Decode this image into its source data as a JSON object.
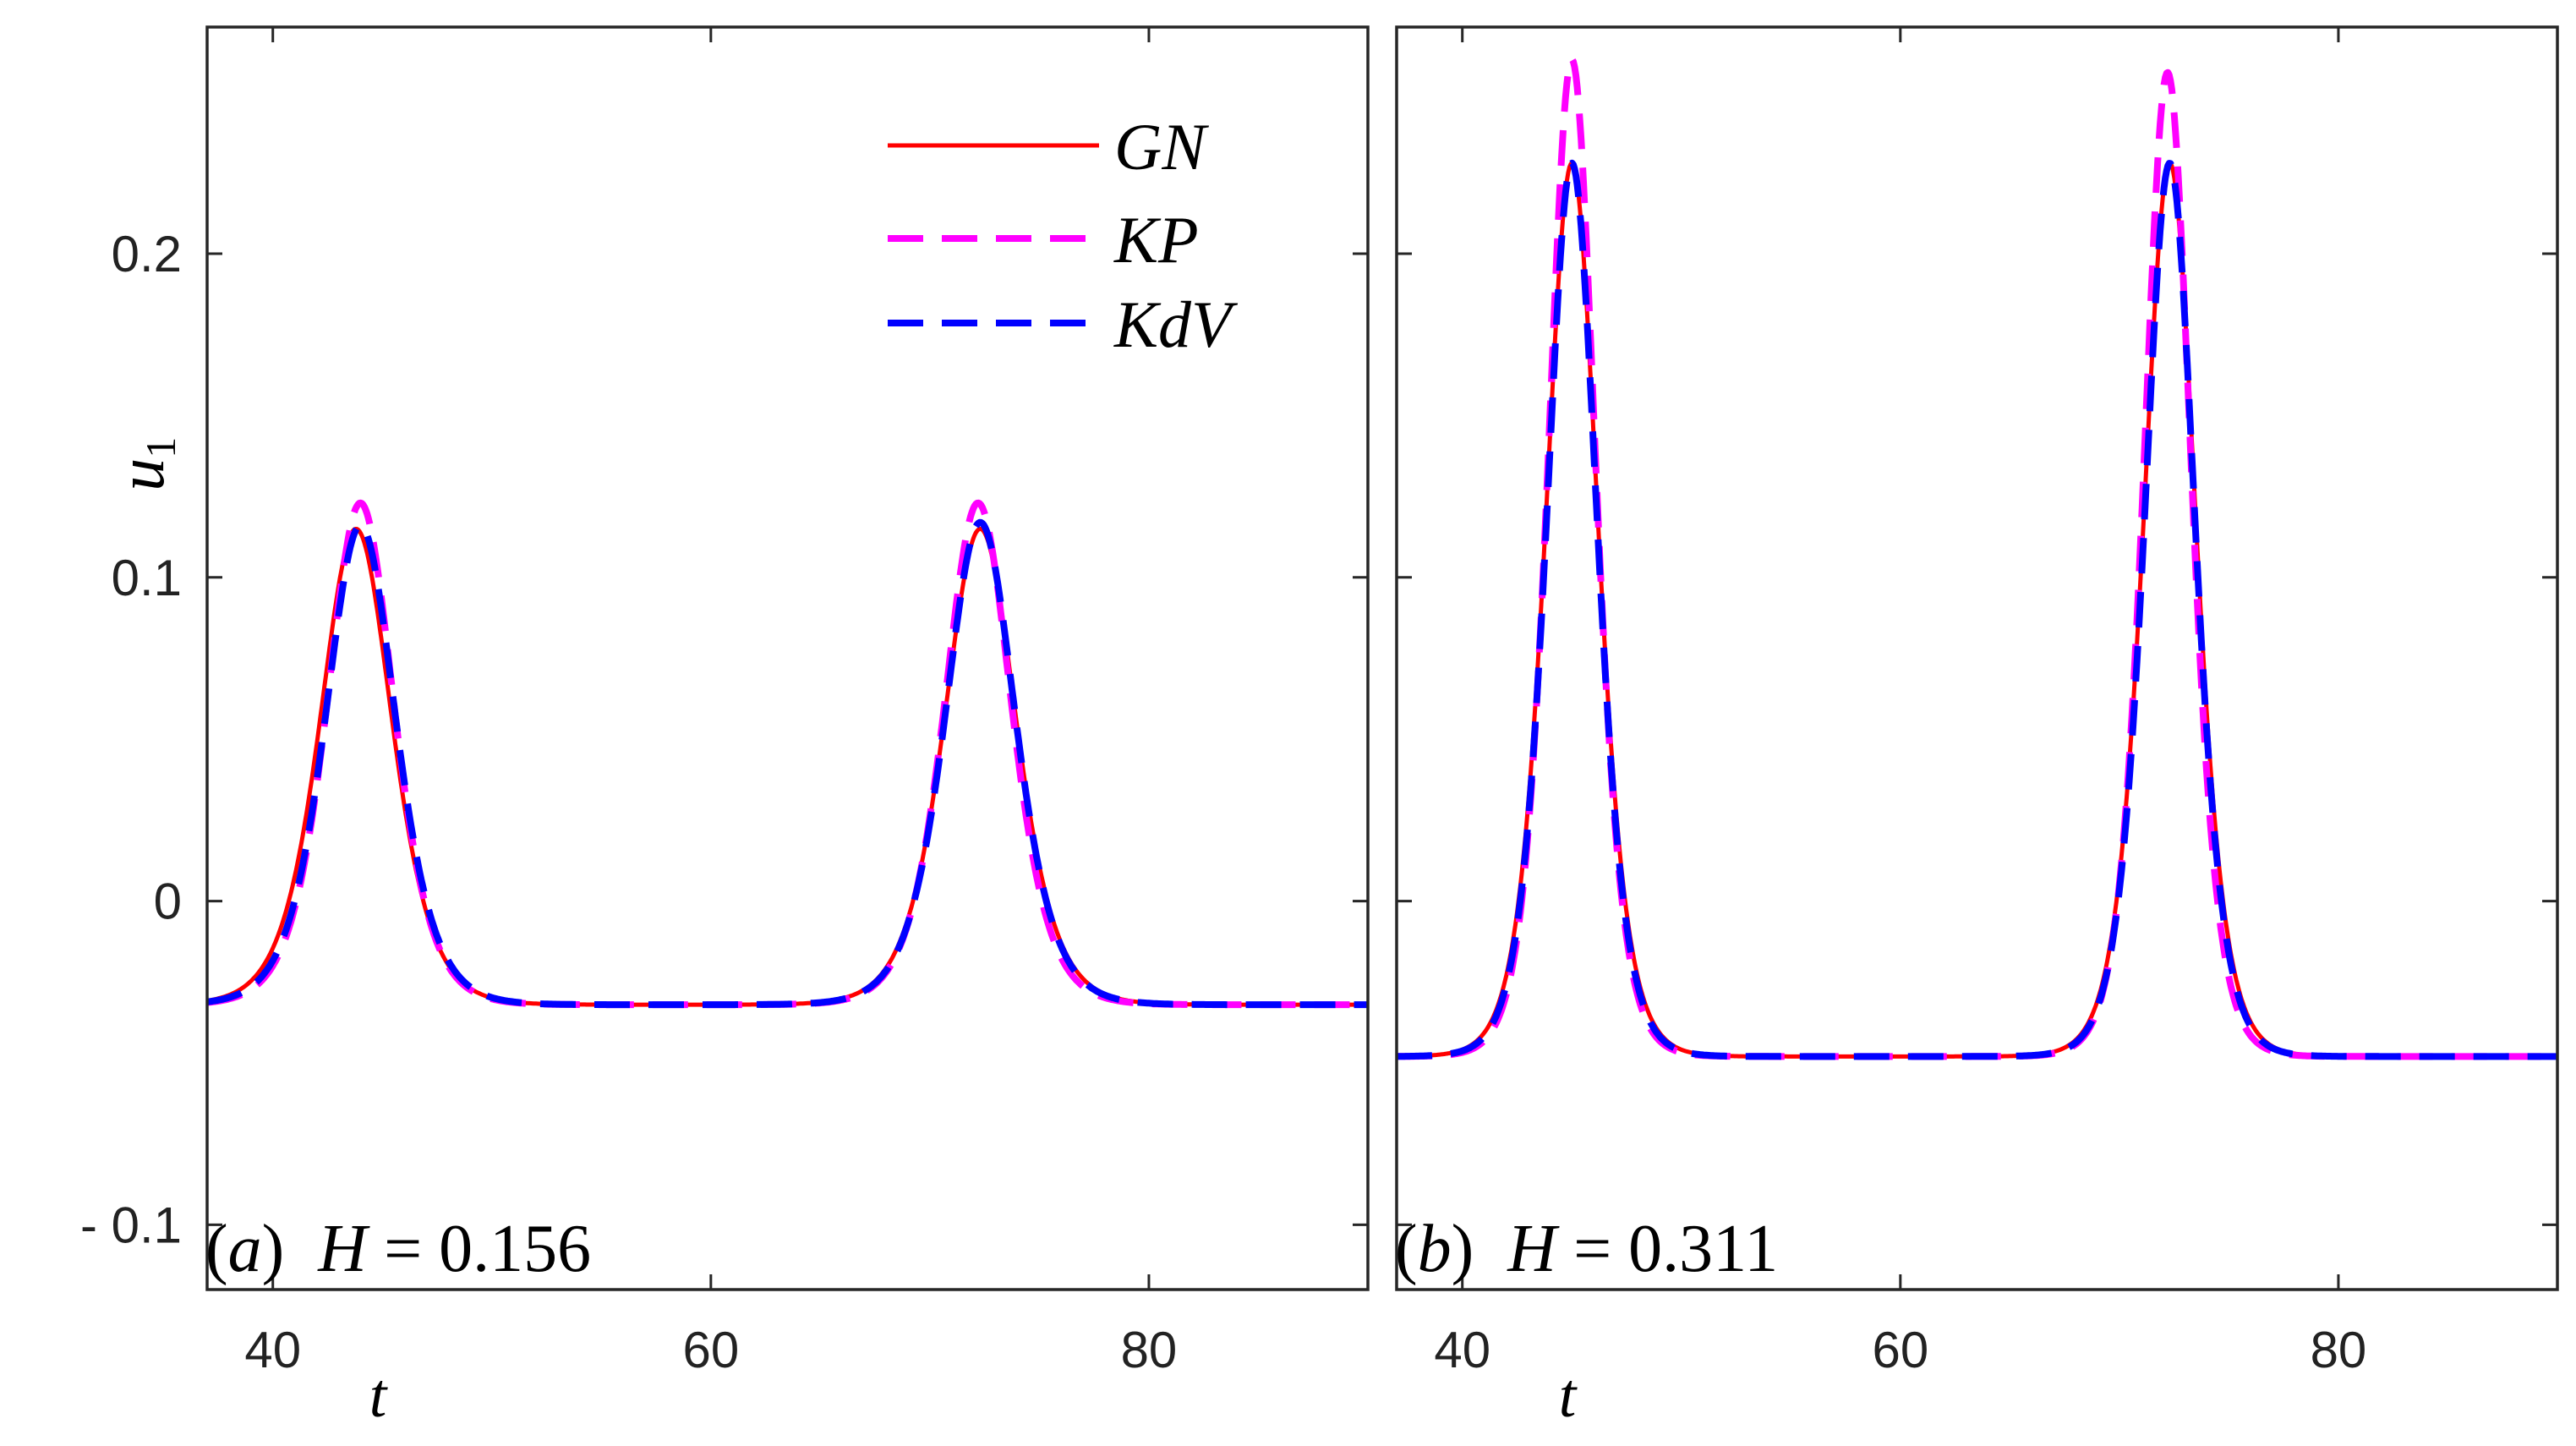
{
  "chart_data": [
    {
      "type": "line",
      "panel": "a",
      "annotation_label": "(a)",
      "annotation_value": "H = 0.156",
      "xlabel": "t",
      "ylabel": "u1",
      "xlim": [
        37,
        90
      ],
      "ylim": [
        -0.12,
        0.27
      ],
      "xticks": [
        40,
        60,
        80
      ],
      "yticks": [
        -0.1,
        0,
        0.1,
        0.2
      ],
      "xtick_labels": [
        "40",
        "60",
        "80"
      ],
      "ytick_labels": [
        "- 0.1",
        "0",
        "0.1",
        "0.2"
      ],
      "baseline": -0.032,
      "series": [
        {
          "name": "GN",
          "color": "#ff0000",
          "style": "solid",
          "peaks": [
            {
              "t": 43.8,
              "u": 0.115,
              "w": 2.2
            },
            {
              "t": 72.3,
              "u": 0.115,
              "w": 2.2
            }
          ]
        },
        {
          "name": "KP",
          "color": "#ff00ff",
          "style": "dashed",
          "peaks": [
            {
              "t": 44.0,
              "u": 0.123,
              "w": 2.05
            },
            {
              "t": 72.2,
              "u": 0.123,
              "w": 2.05
            }
          ]
        },
        {
          "name": "KdV",
          "color": "#0000ff",
          "style": "dashed",
          "peaks": [
            {
              "t": 44.0,
              "u": 0.116,
              "w": 2.15
            },
            {
              "t": 72.3,
              "u": 0.117,
              "w": 2.15
            }
          ]
        }
      ]
    },
    {
      "type": "line",
      "panel": "b",
      "annotation_label": "(b)",
      "annotation_value": "H = 0.311",
      "xlabel": "t",
      "ylabel": "",
      "xlim": [
        37,
        90
      ],
      "ylim": [
        -0.12,
        0.27
      ],
      "xticks": [
        40,
        60,
        80
      ],
      "yticks": [
        -0.1,
        0,
        0.1,
        0.2
      ],
      "xtick_labels": [
        "40",
        "60",
        "80"
      ],
      "ytick_labels": [],
      "baseline": -0.048,
      "series": [
        {
          "name": "GN",
          "color": "#ff0000",
          "style": "solid",
          "peaks": [
            {
              "t": 45.0,
              "u": 0.228,
              "w": 1.6
            },
            {
              "t": 72.3,
              "u": 0.228,
              "w": 1.6
            }
          ]
        },
        {
          "name": "KP",
          "color": "#ff00ff",
          "style": "dashed",
          "peaks": [
            {
              "t": 45.0,
              "u": 0.26,
              "w": 1.45
            },
            {
              "t": 72.2,
              "u": 0.256,
              "w": 1.45
            }
          ]
        },
        {
          "name": "KdV",
          "color": "#0000ff",
          "style": "dashed",
          "peaks": [
            {
              "t": 45.0,
              "u": 0.228,
              "w": 1.55
            },
            {
              "t": 72.3,
              "u": 0.228,
              "w": 1.55
            }
          ]
        }
      ]
    }
  ],
  "legend": {
    "placement": "top-right of panel (a)",
    "entries": [
      {
        "name": "GN",
        "label": "GN",
        "color": "#ff0000",
        "style": "solid"
      },
      {
        "name": "KP",
        "label": "KP",
        "color": "#ff00ff",
        "style": "dashed"
      },
      {
        "name": "KdV",
        "label": "KdV",
        "color": "#0000ff",
        "style": "dashed"
      }
    ]
  }
}
